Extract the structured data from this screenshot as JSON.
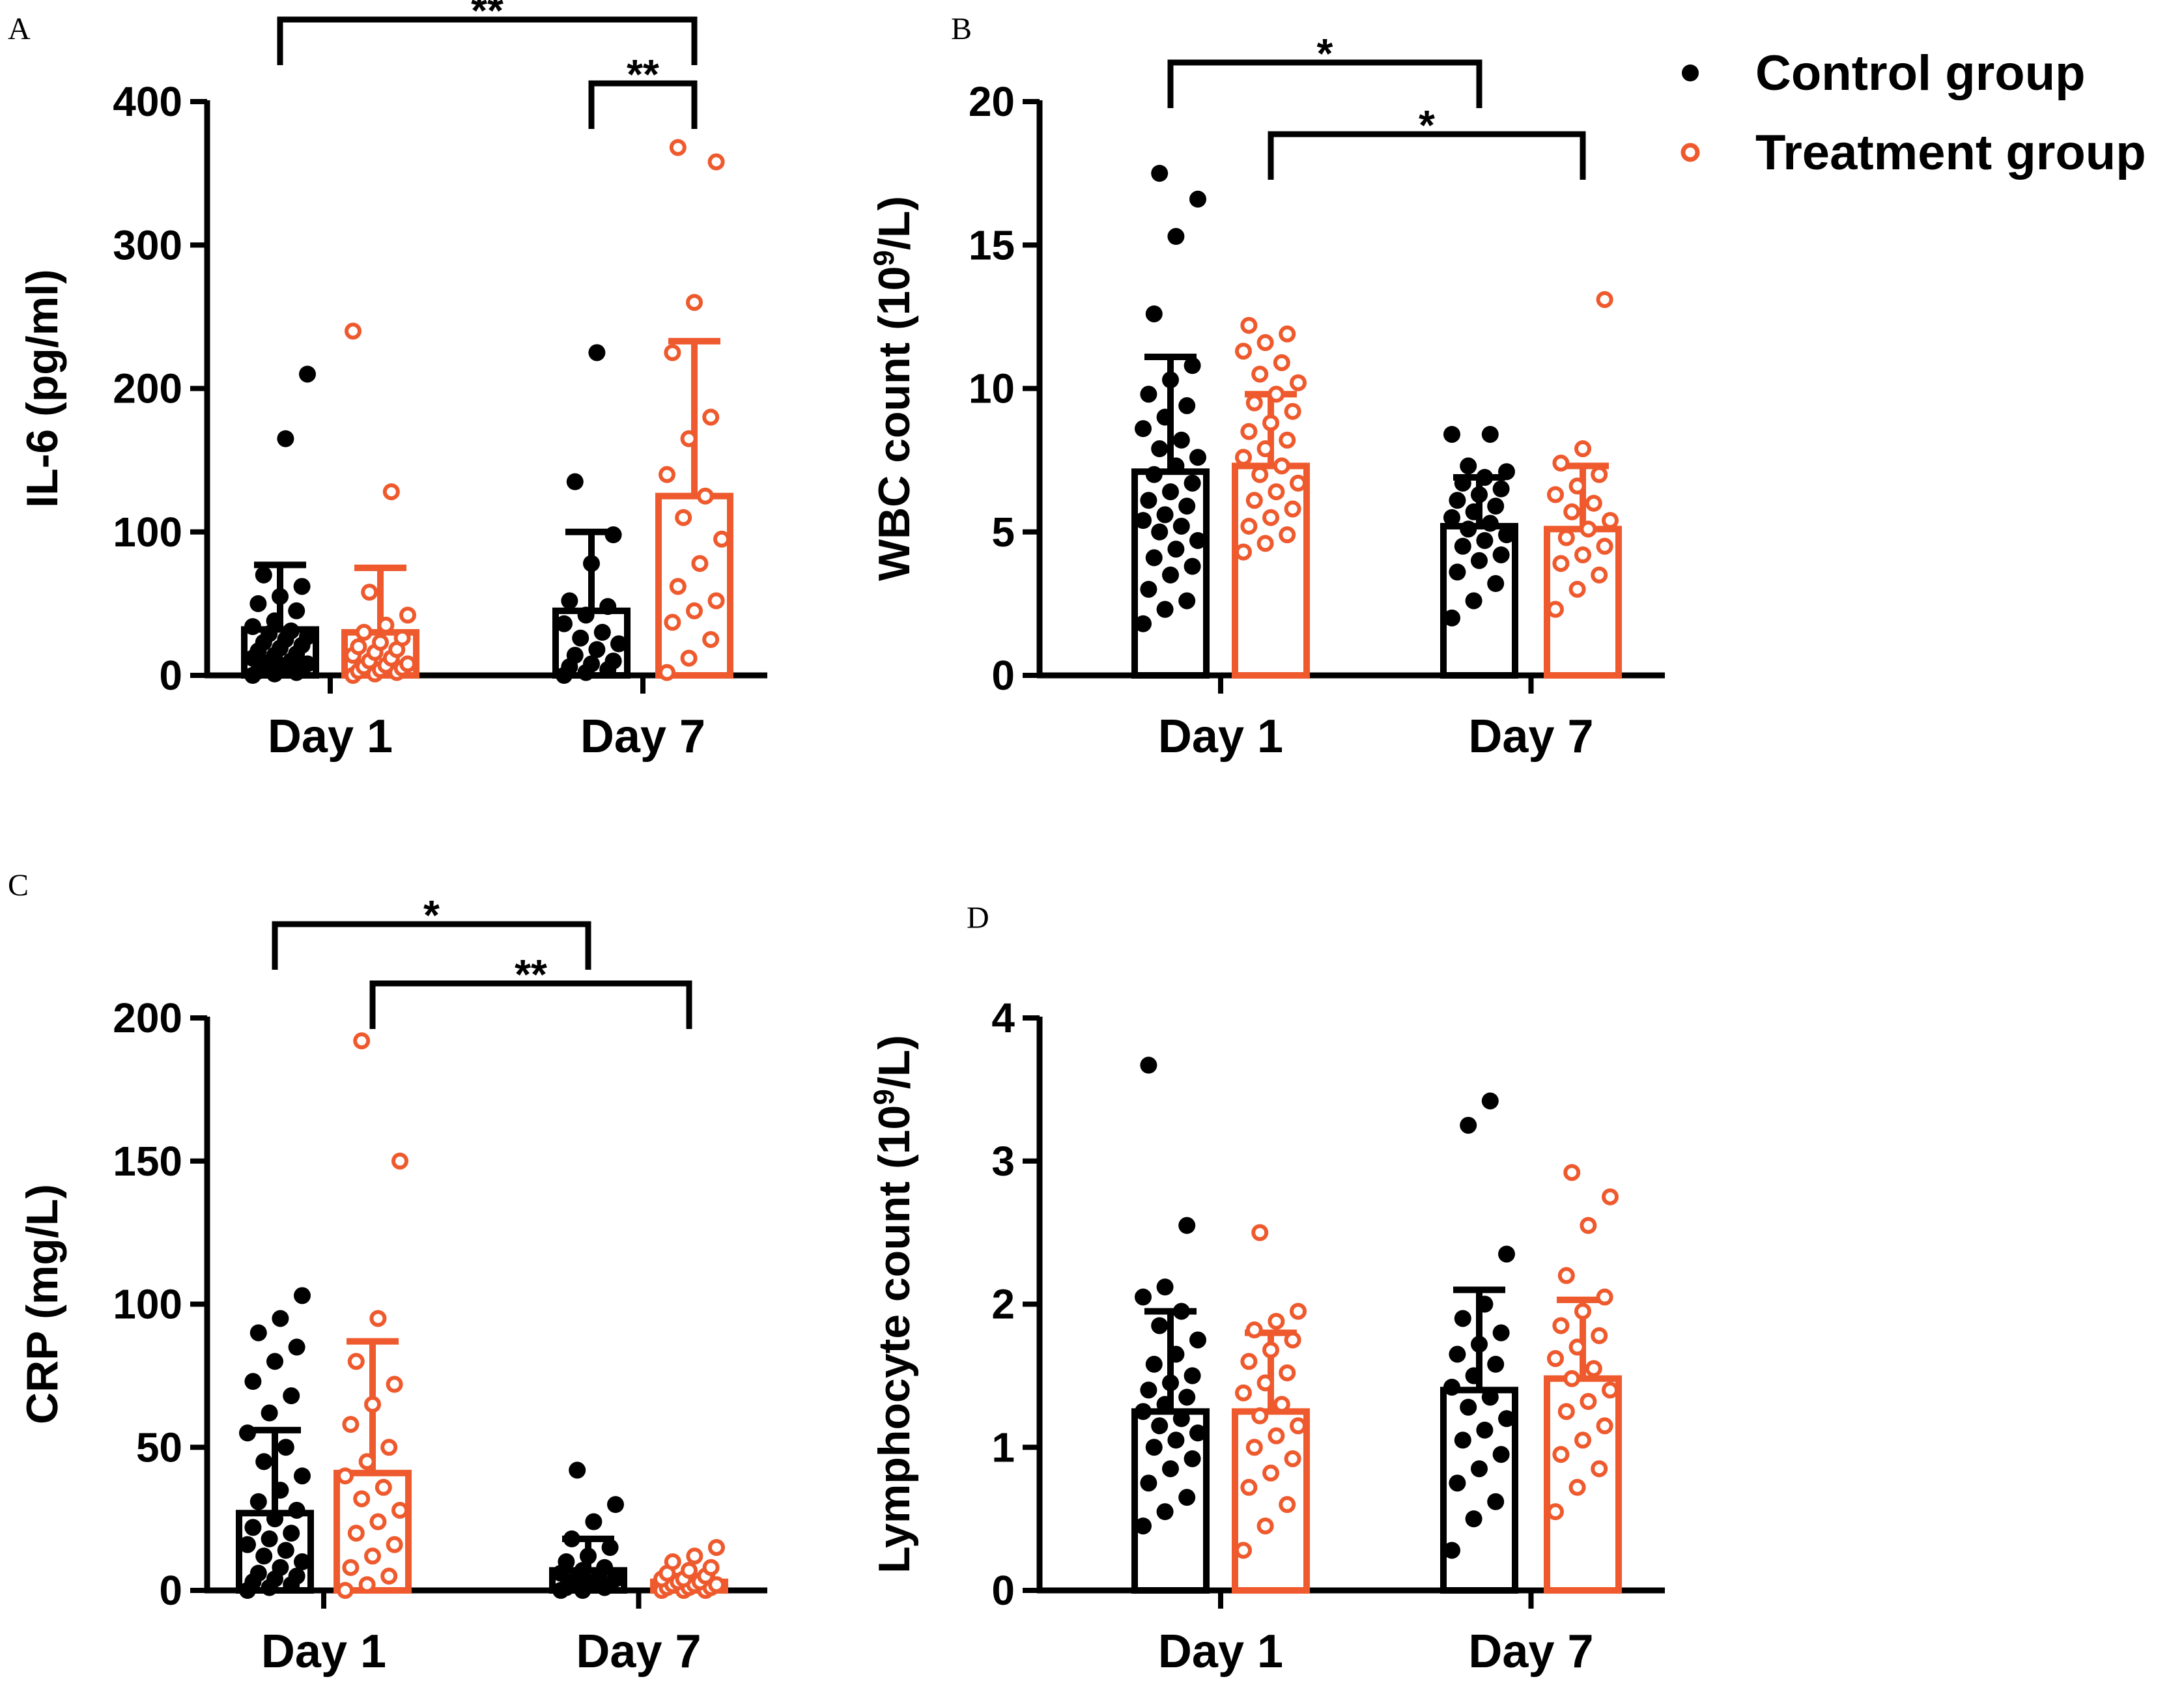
{
  "colors": {
    "control": "#000000",
    "treatment": "#ee5a2d"
  },
  "legend": {
    "position": "top-right",
    "items": [
      {
        "label": "Control group",
        "marker": "filled-circle",
        "color": "#000000"
      },
      {
        "label": "Treatment group",
        "marker": "open-circle",
        "color": "#ee5a2d"
      }
    ]
  },
  "chart_data": [
    {
      "panel": "A",
      "type": "bar",
      "ylabel": "IL-6 (pg/ml)",
      "ylim": [
        0,
        400
      ],
      "yticks": [
        "0",
        "100",
        "200",
        "300",
        "400"
      ],
      "categories": [
        "Day 1",
        "Day 7"
      ],
      "series": [
        {
          "name": "Control group",
          "values": [
            32,
            45
          ],
          "sd_upper": [
            77,
            100
          ],
          "points": [
            [
              0,
              1,
              2,
              3,
              4,
              5,
              6,
              7,
              8,
              9,
              10,
              12,
              14,
              15,
              17,
              19,
              21,
              23,
              25,
              27,
              29,
              31,
              34,
              38,
              45,
              50,
              55,
              62,
              70,
              165,
              210
            ],
            [
              0,
              2,
              4,
              6,
              8,
              10,
              14,
              18,
              22,
              26,
              30,
              36,
              42,
              48,
              52,
              78,
              98,
              135,
              225
            ]
          ]
        },
        {
          "name": "Treatment group",
          "values": [
            30,
            125
          ],
          "sd_upper": [
            75,
            233
          ],
          "points": [
            [
              0,
              1,
              2,
              3,
              4,
              5,
              6,
              7,
              8,
              10,
              12,
              14,
              16,
              18,
              20,
              23,
              26,
              30,
              35,
              42,
              58,
              128,
              240
            ],
            [
              2,
              12,
              25,
              37,
              45,
              52,
              62,
              78,
              95,
              110,
              125,
              140,
              165,
              180,
              225,
              260,
              358,
              368
            ]
          ]
        }
      ],
      "significance": [
        {
          "from": "Day 1 Control group",
          "to": "Day 7 Treatment group",
          "label": "**"
        },
        {
          "from": "Day 7 Control group",
          "to": "Day 7 Treatment group",
          "label": "**"
        }
      ]
    },
    {
      "panel": "B",
      "type": "bar",
      "ylabel": "WBC count (10⁹/L)",
      "ylim": [
        0,
        20
      ],
      "yticks": [
        "0",
        "5",
        "10",
        "15",
        "20"
      ],
      "categories": [
        "Day 1",
        "Day 7"
      ],
      "series": [
        {
          "name": "Control group",
          "values": [
            7.1,
            5.2
          ],
          "sd_upper": [
            11.1,
            6.9
          ],
          "points": [
            [
              1.8,
              2.3,
              2.6,
              3.0,
              3.5,
              3.8,
              4.1,
              4.4,
              4.7,
              5.0,
              5.2,
              5.4,
              5.6,
              5.9,
              6.1,
              6.4,
              6.7,
              7.0,
              7.3,
              7.6,
              7.9,
              8.2,
              8.6,
              9.0,
              9.4,
              9.8,
              10.3,
              10.8,
              12.6,
              15.3,
              16.6,
              17.5
            ],
            [
              2.0,
              2.6,
              3.2,
              3.6,
              4.0,
              4.2,
              4.5,
              4.7,
              4.9,
              5.1,
              5.3,
              5.5,
              5.7,
              5.9,
              6.1,
              6.3,
              6.5,
              6.7,
              6.9,
              7.1,
              7.3,
              8.4,
              8.4
            ]
          ]
        },
        {
          "name": "Treatment group",
          "values": [
            7.3,
            5.1
          ],
          "sd_upper": [
            9.8,
            7.3
          ],
          "points": [
            [
              4.3,
              4.6,
              4.9,
              5.2,
              5.5,
              5.8,
              6.1,
              6.4,
              6.7,
              7.0,
              7.3,
              7.6,
              7.9,
              8.2,
              8.5,
              8.8,
              9.2,
              9.5,
              9.8,
              10.2,
              10.5,
              10.9,
              11.3,
              11.6,
              11.9,
              12.2
            ],
            [
              2.3,
              3.0,
              3.5,
              3.9,
              4.2,
              4.5,
              4.8,
              5.1,
              5.4,
              5.7,
              6.0,
              6.3,
              6.6,
              7.0,
              7.4,
              7.9,
              13.1
            ]
          ]
        }
      ],
      "significance": [
        {
          "from": "Day 1 Control group",
          "to": "Day 7 Control group",
          "label": "*"
        },
        {
          "from": "Day 1 Treatment group",
          "to": "Day 7 Treatment group",
          "label": "*"
        }
      ]
    },
    {
      "panel": "C",
      "type": "bar",
      "ylabel": "CRP (mg/L)",
      "ylim": [
        0,
        200
      ],
      "yticks": [
        "0",
        "50",
        "100",
        "150",
        "200"
      ],
      "categories": [
        "Day 1",
        "Day 7"
      ],
      "series": [
        {
          "name": "Control group",
          "values": [
            27,
            7
          ],
          "sd_upper": [
            56,
            18
          ],
          "points": [
            [
              0,
              1,
              2,
              3,
              4,
              5,
              6,
              8,
              10,
              12,
              14,
              16,
              18,
              20,
              22,
              25,
              28,
              31,
              35,
              40,
              45,
              50,
              55,
              62,
              68,
              73,
              80,
              85,
              90,
              95,
              103
            ],
            [
              0,
              0,
              1,
              1,
              2,
              2,
              3,
              3,
              4,
              4,
              5,
              6,
              7,
              8,
              10,
              12,
              15,
              18,
              24,
              30,
              42
            ]
          ]
        },
        {
          "name": "Treatment group",
          "values": [
            41,
            3
          ],
          "sd_upper": [
            87,
            5
          ],
          "points": [
            [
              0,
              2,
              5,
              8,
              12,
              16,
              20,
              24,
              28,
              32,
              36,
              40,
              45,
              50,
              58,
              65,
              72,
              80,
              95,
              150,
              192
            ],
            [
              0,
              0,
              0,
              1,
              1,
              1,
              2,
              2,
              2,
              3,
              3,
              4,
              4,
              5,
              6,
              7,
              8,
              10,
              12,
              15
            ]
          ]
        }
      ],
      "significance": [
        {
          "from": "Day 1 Control group",
          "to": "Day 7 Control group",
          "label": "*"
        },
        {
          "from": "Day 1 Treatment group",
          "to": "Day 7 Treatment group",
          "label": "**"
        }
      ]
    },
    {
      "panel": "D",
      "type": "bar",
      "ylabel": "Lymphocyte count (10⁹/L)",
      "ylim": [
        0,
        4
      ],
      "yticks": [
        "0",
        "1",
        "2",
        "3",
        "4"
      ],
      "categories": [
        "Day 1",
        "Day 7"
      ],
      "series": [
        {
          "name": "Control group",
          "values": [
            1.25,
            1.4
          ],
          "sd_upper": [
            1.95,
            2.1
          ],
          "points": [
            [
              0.45,
              0.55,
              0.65,
              0.75,
              0.85,
              0.92,
              1.0,
              1.05,
              1.1,
              1.15,
              1.2,
              1.25,
              1.3,
              1.35,
              1.4,
              1.45,
              1.5,
              1.58,
              1.65,
              1.75,
              1.85,
              1.95,
              2.05,
              2.12,
              2.55,
              3.67
            ],
            [
              0.28,
              0.5,
              0.62,
              0.75,
              0.85,
              0.95,
              1.05,
              1.12,
              1.2,
              1.28,
              1.35,
              1.42,
              1.5,
              1.58,
              1.65,
              1.72,
              1.8,
              1.9,
              2.0,
              2.35,
              3.25,
              3.42
            ]
          ]
        },
        {
          "name": "Treatment group",
          "values": [
            1.25,
            1.48
          ],
          "sd_upper": [
            1.8,
            2.03
          ],
          "points": [
            [
              0.28,
              0.45,
              0.6,
              0.72,
              0.82,
              0.92,
              1.0,
              1.08,
              1.15,
              1.22,
              1.3,
              1.38,
              1.45,
              1.52,
              1.6,
              1.68,
              1.75,
              1.82,
              1.88,
              1.95,
              2.5
            ],
            [
              0.55,
              0.72,
              0.85,
              0.95,
              1.05,
              1.15,
              1.25,
              1.32,
              1.4,
              1.48,
              1.55,
              1.62,
              1.7,
              1.78,
              1.85,
              1.95,
              2.05,
              2.2,
              2.55,
              2.75,
              2.92
            ]
          ]
        }
      ],
      "significance": []
    }
  ]
}
